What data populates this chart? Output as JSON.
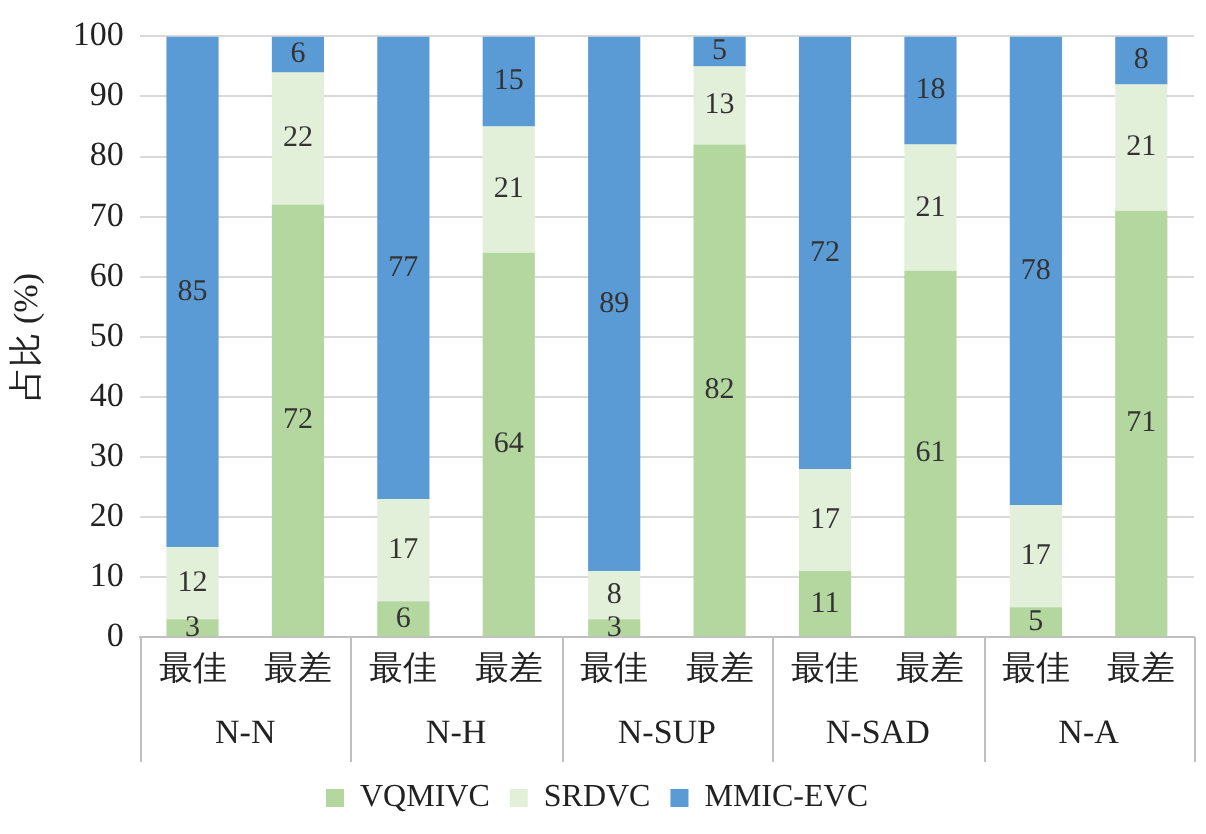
{
  "chart_data": {
    "type": "bar",
    "stacked": true,
    "ylabel": "占比 (%)",
    "categories": [
      "最佳",
      "最差",
      "最佳",
      "最差",
      "最佳",
      "最差",
      "最佳",
      "最差",
      "最佳",
      "最差"
    ],
    "annotations": [
      "N-N",
      "N-H",
      "N-SUP",
      "N-SAD",
      "N-A"
    ],
    "series": [
      {
        "name": "VQMIVC",
        "color": "#b4d7a0",
        "values": [
          3,
          72,
          6,
          64,
          3,
          82,
          11,
          61,
          5,
          71
        ]
      },
      {
        "name": "SRDVC",
        "color": "#e2efd9",
        "values": [
          12,
          22,
          17,
          21,
          8,
          13,
          17,
          21,
          17,
          21
        ]
      },
      {
        "name": "MMIC-EVC",
        "color": "#5b9bd5",
        "values": [
          85,
          6,
          77,
          15,
          89,
          5,
          72,
          18,
          78,
          8
        ]
      }
    ],
    "ylim": [
      0,
      100
    ],
    "yticks": [
      0,
      10,
      20,
      30,
      40,
      50,
      60,
      70,
      80,
      90,
      100
    ],
    "grid": "y",
    "legend": "bottom",
    "data_labels": true
  }
}
